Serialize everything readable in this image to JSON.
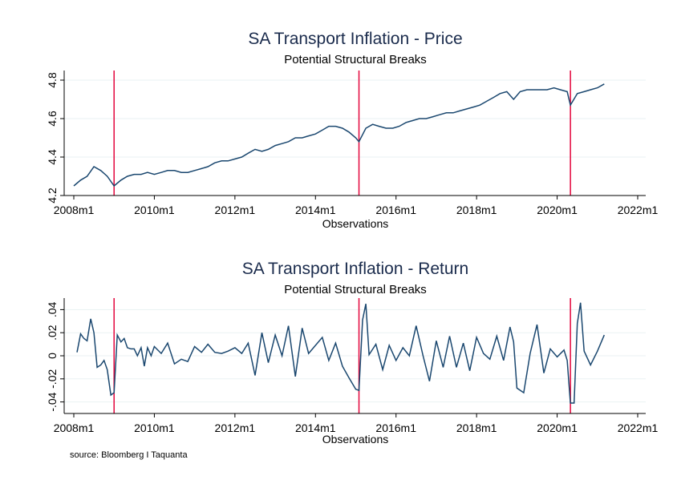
{
  "source_note": "source: Bloomberg I Taquanta",
  "chart_data": [
    {
      "type": "line",
      "title": "SA Transport Inflation - Price",
      "subtitle": "Potential Structural Breaks",
      "xlabel": "Observations",
      "ylabel": "",
      "xlim": [
        2008.0,
        2022.0
      ],
      "ylim": [
        4.2,
        4.85
      ],
      "x_ticks": [
        "2008m1",
        "2010m1",
        "2012m1",
        "2014m1",
        "2016m1",
        "2018m1",
        "2020m1",
        "2022m1"
      ],
      "x_tick_values": [
        2008,
        2010,
        2012,
        2014,
        2016,
        2018,
        2020,
        2022
      ],
      "y_ticks": [
        "4.2",
        "4.4",
        "4.6",
        "4.8"
      ],
      "y_tick_values": [
        4.2,
        4.4,
        4.6,
        4.8
      ],
      "grid": true,
      "break_dates": [
        2009.0,
        2015.08,
        2020.33
      ],
      "break_color": "#e3053c",
      "line_color": "#1a476f",
      "series": [
        {
          "x": [
            2008.0,
            2008.17,
            2008.33,
            2008.5,
            2008.67,
            2008.83,
            2009.0,
            2009.17,
            2009.33,
            2009.5,
            2009.67,
            2009.83,
            2010.0,
            2010.17,
            2010.33,
            2010.5,
            2010.67,
            2010.83,
            2011.0,
            2011.17,
            2011.33,
            2011.5,
            2011.67,
            2011.83,
            2012.0,
            2012.17,
            2012.33,
            2012.5,
            2012.67,
            2012.83,
            2013.0,
            2013.17,
            2013.33,
            2013.5,
            2013.67,
            2013.83,
            2014.0,
            2014.17,
            2014.33,
            2014.5,
            2014.67,
            2014.83,
            2015.0,
            2015.08,
            2015.25,
            2015.42,
            2015.58,
            2015.75,
            2015.92,
            2016.08,
            2016.25,
            2016.42,
            2016.58,
            2016.75,
            2016.92,
            2017.08,
            2017.25,
            2017.42,
            2017.58,
            2017.75,
            2017.92,
            2018.08,
            2018.25,
            2018.42,
            2018.58,
            2018.75,
            2018.92,
            2019.08,
            2019.25,
            2019.42,
            2019.58,
            2019.75,
            2019.92,
            2020.08,
            2020.25,
            2020.33,
            2020.5,
            2020.67,
            2020.83,
            2021.0,
            2021.17
          ],
          "values": [
            4.25,
            4.28,
            4.3,
            4.35,
            4.33,
            4.3,
            4.25,
            4.28,
            4.3,
            4.31,
            4.31,
            4.32,
            4.31,
            4.32,
            4.33,
            4.33,
            4.32,
            4.32,
            4.33,
            4.34,
            4.35,
            4.37,
            4.38,
            4.38,
            4.39,
            4.4,
            4.42,
            4.44,
            4.43,
            4.44,
            4.46,
            4.47,
            4.48,
            4.5,
            4.5,
            4.51,
            4.52,
            4.54,
            4.56,
            4.56,
            4.55,
            4.53,
            4.5,
            4.48,
            4.55,
            4.57,
            4.56,
            4.55,
            4.55,
            4.56,
            4.58,
            4.59,
            4.6,
            4.6,
            4.61,
            4.62,
            4.63,
            4.63,
            4.64,
            4.65,
            4.66,
            4.67,
            4.69,
            4.71,
            4.73,
            4.74,
            4.7,
            4.74,
            4.75,
            4.75,
            4.75,
            4.75,
            4.76,
            4.75,
            4.74,
            4.67,
            4.73,
            4.74,
            4.75,
            4.76,
            4.78
          ]
        }
      ]
    },
    {
      "type": "line",
      "title": "SA Transport Inflation - Return",
      "subtitle": "Potential Structural Breaks",
      "xlabel": "Observations",
      "ylabel": "",
      "xlim": [
        2008.0,
        2022.0
      ],
      "ylim": [
        -0.05,
        0.05
      ],
      "x_ticks": [
        "2008m1",
        "2010m1",
        "2012m1",
        "2014m1",
        "2016m1",
        "2018m1",
        "2020m1",
        "2022m1"
      ],
      "x_tick_values": [
        2008,
        2010,
        2012,
        2014,
        2016,
        2018,
        2020,
        2022
      ],
      "y_ticks": [
        "-.04",
        "-.02",
        "0",
        ".02",
        ".04"
      ],
      "y_tick_values": [
        -0.04,
        -0.02,
        0,
        0.02,
        0.04
      ],
      "grid": true,
      "break_dates": [
        2009.0,
        2015.08,
        2020.33
      ],
      "break_color": "#e3053c",
      "line_color": "#1a476f",
      "series": [
        {
          "x": [
            2008.08,
            2008.17,
            2008.25,
            2008.33,
            2008.42,
            2008.5,
            2008.58,
            2008.67,
            2008.75,
            2008.83,
            2008.92,
            2009.0,
            2009.08,
            2009.17,
            2009.25,
            2009.33,
            2009.42,
            2009.5,
            2009.58,
            2009.67,
            2009.75,
            2009.83,
            2009.92,
            2010.0,
            2010.17,
            2010.33,
            2010.5,
            2010.67,
            2010.83,
            2011.0,
            2011.17,
            2011.33,
            2011.5,
            2011.67,
            2011.83,
            2012.0,
            2012.17,
            2012.33,
            2012.5,
            2012.67,
            2012.83,
            2013.0,
            2013.17,
            2013.33,
            2013.5,
            2013.67,
            2013.83,
            2014.0,
            2014.17,
            2014.33,
            2014.5,
            2014.67,
            2014.83,
            2015.0,
            2015.08,
            2015.17,
            2015.25,
            2015.33,
            2015.5,
            2015.67,
            2015.83,
            2016.0,
            2016.17,
            2016.33,
            2016.5,
            2016.67,
            2016.83,
            2017.0,
            2017.17,
            2017.33,
            2017.5,
            2017.67,
            2017.83,
            2018.0,
            2018.17,
            2018.33,
            2018.5,
            2018.67,
            2018.83,
            2018.92,
            2019.0,
            2019.17,
            2019.33,
            2019.5,
            2019.67,
            2019.83,
            2020.0,
            2020.17,
            2020.25,
            2020.33,
            2020.42,
            2020.5,
            2020.58,
            2020.67,
            2020.83,
            2021.0,
            2021.17
          ],
          "values": [
            0.003,
            0.019,
            0.015,
            0.013,
            0.032,
            0.02,
            -0.01,
            -0.008,
            -0.004,
            -0.012,
            -0.034,
            -0.032,
            0.018,
            0.012,
            0.015,
            0.007,
            0.006,
            0.006,
            0.0,
            0.007,
            -0.009,
            0.007,
            0.0,
            0.008,
            0.002,
            0.011,
            -0.007,
            -0.003,
            -0.005,
            0.008,
            0.003,
            0.01,
            0.003,
            0.002,
            0.004,
            0.007,
            0.002,
            0.011,
            -0.017,
            0.02,
            -0.006,
            0.018,
            0.0,
            0.026,
            -0.018,
            0.024,
            0.002,
            0.009,
            0.016,
            -0.004,
            0.011,
            -0.009,
            -0.019,
            -0.029,
            -0.03,
            0.031,
            0.045,
            0.001,
            0.01,
            -0.012,
            0.009,
            -0.004,
            0.007,
            0.0,
            0.026,
            0.0,
            -0.022,
            0.013,
            -0.01,
            0.017,
            -0.01,
            0.011,
            -0.013,
            0.016,
            0.002,
            -0.003,
            0.017,
            -0.004,
            0.025,
            0.012,
            -0.028,
            -0.032,
            0.002,
            0.027,
            -0.015,
            0.006,
            -0.001,
            0.005,
            -0.004,
            -0.041,
            -0.041,
            0.028,
            0.046,
            0.004,
            -0.008,
            0.004,
            0.018
          ]
        }
      ]
    }
  ]
}
